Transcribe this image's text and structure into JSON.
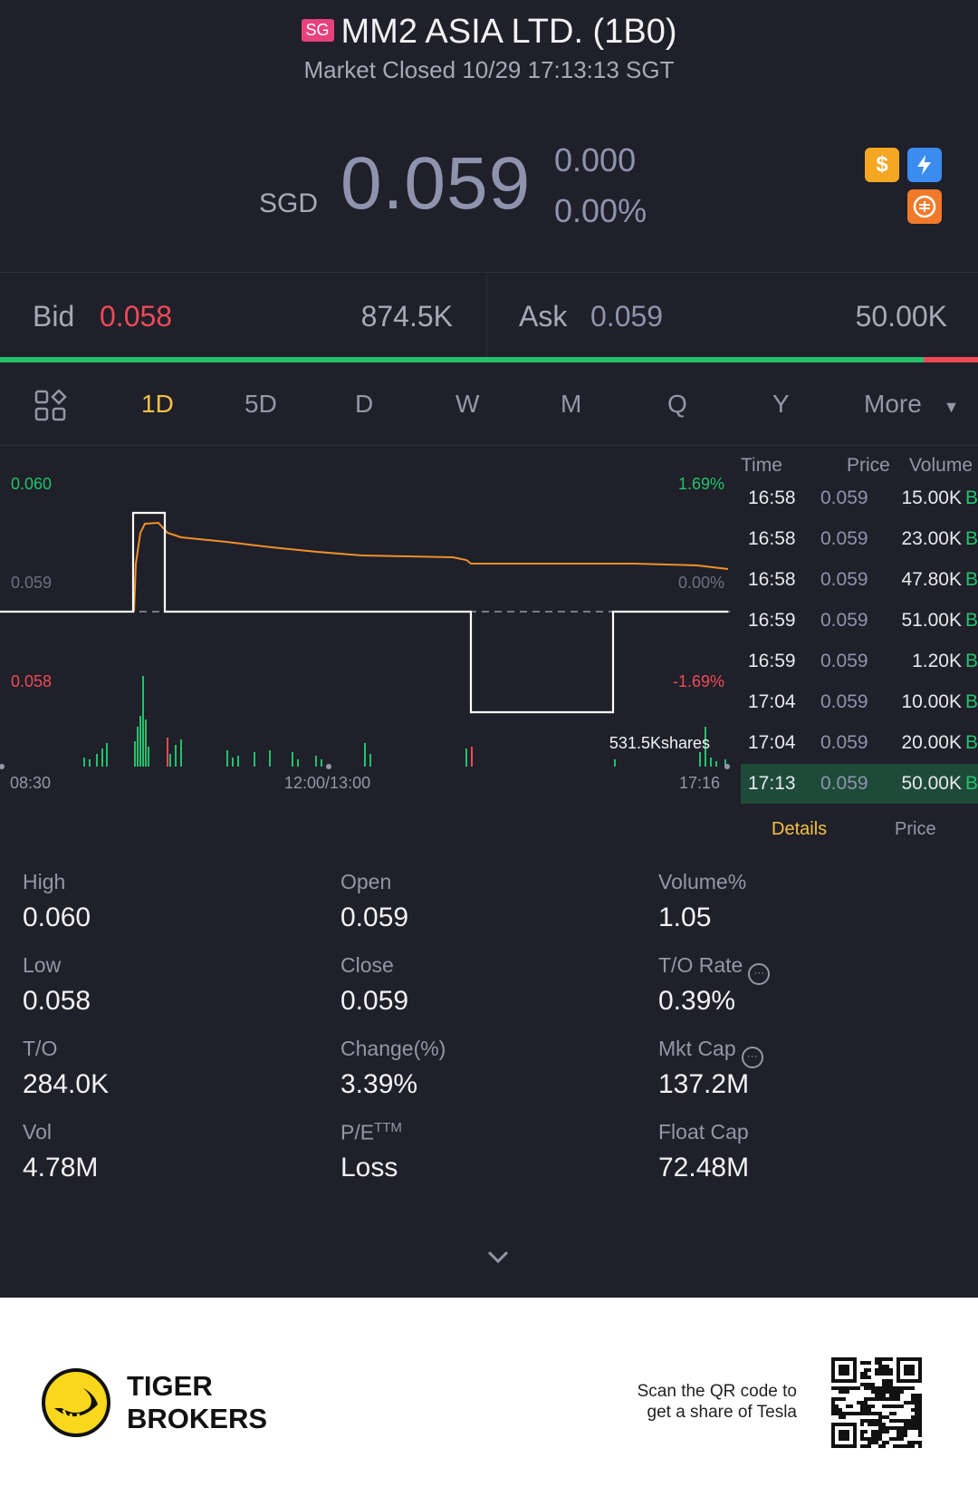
{
  "header": {
    "badge": "SG",
    "title": "MM2 ASIA LTD. (1B0)",
    "status": "Market Closed 10/29 17:13:13 SGT",
    "currency": "SGD",
    "price": "0.059",
    "change": "0.000",
    "change_pct": "0.00%",
    "icons": [
      "dollar-icon",
      "lightning-icon",
      "tiger-coin-icon"
    ]
  },
  "bidask": {
    "bid_label": "Bid",
    "bid_price": "0.058",
    "bid_volume": "874.5K",
    "ask_label": "Ask",
    "ask_price": "0.059",
    "ask_volume": "50.00K",
    "bid_ratio": 0.944
  },
  "tabs": {
    "items": [
      "1D",
      "5D",
      "D",
      "W",
      "M",
      "Q",
      "Y"
    ],
    "active": "1D",
    "more": "More"
  },
  "chart": {
    "y_top": "0.060",
    "y_mid": "0.059",
    "y_bot": "0.058",
    "pct_top": "1.69%",
    "pct_mid": "0.00%",
    "pct_bot": "-1.69%",
    "volume_label": "531.5Kshares",
    "x_start": "08:30",
    "x_mid": "12:00/13:00",
    "x_end": "17:16",
    "colors": {
      "price_line": "#ffffff",
      "avg_line": "#f0902a",
      "up": "#23c26b",
      "down": "#ef4957"
    }
  },
  "ticks": {
    "head_time": "Time",
    "head_price": "Price",
    "head_volume": "Volume",
    "rows": [
      {
        "time": "16:58",
        "price": "0.059",
        "volume": "15.00K",
        "side": "B"
      },
      {
        "time": "16:58",
        "price": "0.059",
        "volume": "23.00K",
        "side": "B"
      },
      {
        "time": "16:58",
        "price": "0.059",
        "volume": "47.80K",
        "side": "B"
      },
      {
        "time": "16:59",
        "price": "0.059",
        "volume": "51.00K",
        "side": "B"
      },
      {
        "time": "16:59",
        "price": "0.059",
        "volume": "1.20K",
        "side": "B"
      },
      {
        "time": "17:04",
        "price": "0.059",
        "volume": "10.00K",
        "side": "B"
      },
      {
        "time": "17:04",
        "price": "0.059",
        "volume": "20.00K",
        "side": "B"
      },
      {
        "time": "17:13",
        "price": "0.059",
        "volume": "50.00K",
        "side": "B"
      }
    ],
    "details": "Details",
    "price_tab": "Price"
  },
  "stats": {
    "high_label": "High",
    "high": "0.060",
    "open_label": "Open",
    "open": "0.059",
    "volpct_label": "Volume%",
    "volpct": "1.05",
    "low_label": "Low",
    "low": "0.058",
    "close_label": "Close",
    "close": "0.059",
    "to_rate_label": "T/O Rate",
    "to_rate": "0.39%",
    "to_label": "T/O",
    "to": "284.0K",
    "change_label": "Change(%)",
    "change": "3.39%",
    "mktcap_label": "Mkt Cap",
    "mktcap": "137.2M",
    "vol_label": "Vol",
    "vol": "4.78M",
    "pe_label": "P/E",
    "pe_sup": "TTM",
    "pe": "Loss",
    "floatcap_label": "Float Cap",
    "floatcap": "72.48M"
  },
  "footer": {
    "brand_line1": "TIGER",
    "brand_line2": "BROKERS",
    "scan_line1": "Scan the QR code to",
    "scan_line2": "get a share of Tesla"
  }
}
